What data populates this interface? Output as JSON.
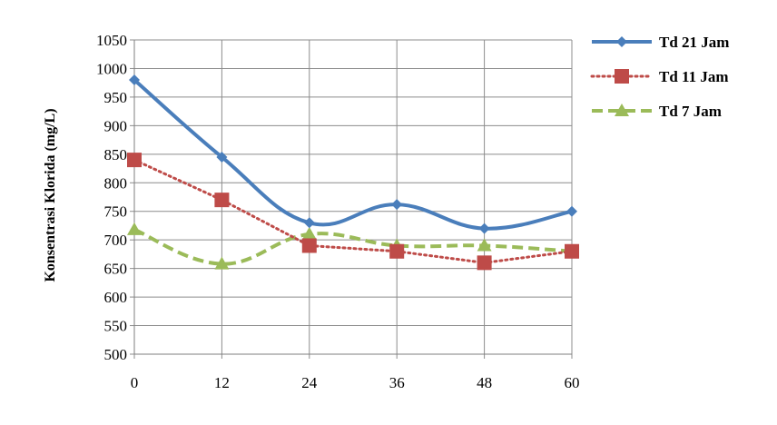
{
  "chart_data": {
    "type": "line",
    "title": "",
    "xlabel": "",
    "ylabel": "Konsentrasi Klorida (mg/L)",
    "x": [
      0,
      12,
      24,
      36,
      48,
      60
    ],
    "xlim": [
      0,
      60
    ],
    "ylim": [
      500,
      1050
    ],
    "yticks": [
      500,
      550,
      600,
      650,
      700,
      750,
      800,
      850,
      900,
      950,
      1000,
      1050
    ],
    "grid": true,
    "legend_position": "right",
    "series": [
      {
        "name": "Td 21 Jam",
        "values": [
          980,
          845,
          730,
          762,
          720,
          750
        ],
        "color": "#4a7ebb",
        "marker": "diamond",
        "line_style": "solid",
        "smooth": true
      },
      {
        "name": "Td 11 Jam",
        "values": [
          840,
          770,
          690,
          680,
          660,
          680
        ],
        "color": "#be4b48",
        "marker": "square",
        "line_style": "dotted",
        "smooth": false
      },
      {
        "name": "Td 7 Jam",
        "values": [
          718,
          658,
          710,
          690,
          690,
          680
        ],
        "color": "#9bbb59",
        "marker": "triangle",
        "line_style": "dashed",
        "smooth": true
      }
    ]
  }
}
